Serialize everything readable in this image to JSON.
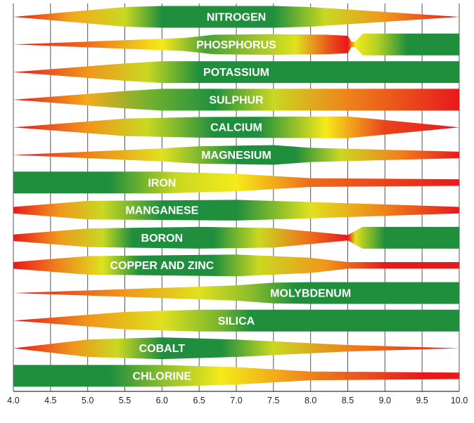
{
  "chart_data": {
    "type": "band",
    "title": "",
    "xlabel": "",
    "ylabel": "",
    "xlim": [
      4.0,
      10.0
    ],
    "x_ticks": [
      "4.0",
      "4.5",
      "5.0",
      "5.5",
      "6.0",
      "6.5",
      "7.0",
      "7.5",
      "8.0",
      "8.5",
      "9.0",
      "9.5",
      "10.0"
    ],
    "grid": "vertical",
    "colors": {
      "red": "#e8191c",
      "yellow": "#f5ea1a",
      "green": "#1f8f3d"
    },
    "series": [
      {
        "name": "NITROGEN",
        "label_x": 7.0,
        "thickness": [
          [
            4.0,
            0
          ],
          [
            5.5,
            0.9
          ],
          [
            6.0,
            1
          ],
          [
            7.5,
            1
          ],
          [
            8.0,
            0.9
          ],
          [
            10.0,
            0
          ]
        ],
        "color": [
          [
            4.0,
            0
          ],
          [
            4.8,
            0.35
          ],
          [
            5.5,
            0.6
          ],
          [
            6.0,
            1
          ],
          [
            7.5,
            1
          ],
          [
            8.2,
            0.6
          ],
          [
            9.0,
            0.3
          ],
          [
            10.0,
            0
          ]
        ]
      },
      {
        "name": "PHOSPHORUS",
        "label_x": 7.0,
        "thickness": [
          [
            4.0,
            0
          ],
          [
            6.3,
            0.6
          ],
          [
            6.7,
            0.9
          ],
          [
            7.5,
            0.95
          ],
          [
            8.2,
            0.9
          ],
          [
            8.5,
            0.8
          ],
          [
            8.55,
            0.25
          ],
          [
            8.6,
            0.25
          ],
          [
            8.7,
            1
          ],
          [
            10.0,
            1
          ]
        ],
        "color": [
          [
            4.0,
            0
          ],
          [
            5.0,
            0.2
          ],
          [
            6.0,
            0.5
          ],
          [
            6.6,
            0.9
          ],
          [
            7.8,
            0.55
          ],
          [
            8.3,
            0.1
          ],
          [
            8.5,
            0
          ],
          [
            8.6,
            0.5
          ],
          [
            8.9,
            0.65
          ],
          [
            9.3,
            1
          ],
          [
            10.0,
            1
          ]
        ]
      },
      {
        "name": "POTASSIUM",
        "label_x": 7.0,
        "thickness": [
          [
            4.0,
            0
          ],
          [
            5.5,
            0.8
          ],
          [
            6.0,
            1
          ],
          [
            10.0,
            1
          ]
        ],
        "color": [
          [
            4.0,
            0
          ],
          [
            5.0,
            0.3
          ],
          [
            5.8,
            0.6
          ],
          [
            6.5,
            1
          ],
          [
            10.0,
            1
          ]
        ]
      },
      {
        "name": "SULPHUR",
        "label_x": 7.0,
        "thickness": [
          [
            4.0,
            0
          ],
          [
            5.5,
            0.8
          ],
          [
            6.0,
            1
          ],
          [
            10.0,
            1
          ]
        ],
        "color": [
          [
            4.0,
            0
          ],
          [
            5.0,
            0.35
          ],
          [
            5.8,
            0.8
          ],
          [
            6.7,
            1
          ],
          [
            7.5,
            0.6
          ],
          [
            8.5,
            0.25
          ],
          [
            10.0,
            0
          ]
        ]
      },
      {
        "name": "CALCIUM",
        "label_x": 7.0,
        "thickness": [
          [
            4.0,
            0
          ],
          [
            5.5,
            0.8
          ],
          [
            6.5,
            0.95
          ],
          [
            8.5,
            1
          ],
          [
            10.0,
            0
          ]
        ],
        "color": [
          [
            4.0,
            0
          ],
          [
            5.0,
            0.3
          ],
          [
            5.8,
            0.6
          ],
          [
            6.7,
            1
          ],
          [
            7.3,
            1
          ],
          [
            8.2,
            0.5
          ],
          [
            9.0,
            0.1
          ],
          [
            10.0,
            0
          ]
        ]
      },
      {
        "name": "MAGNESIUM",
        "label_x": 7.0,
        "thickness": [
          [
            4.0,
            0
          ],
          [
            6.0,
            0.6
          ],
          [
            6.5,
            0.8
          ],
          [
            7.5,
            0.9
          ],
          [
            8.0,
            0.65
          ],
          [
            10.0,
            0.3
          ]
        ],
        "color": [
          [
            4.0,
            0
          ],
          [
            5.0,
            0.25
          ],
          [
            6.0,
            0.55
          ],
          [
            7.0,
            1
          ],
          [
            7.8,
            1
          ],
          [
            8.4,
            0.6
          ],
          [
            9.2,
            0.25
          ],
          [
            10.0,
            0
          ]
        ]
      },
      {
        "name": "IRON",
        "label_x": 6.0,
        "thickness": [
          [
            4.0,
            1
          ],
          [
            6.0,
            1
          ],
          [
            7.0,
            0.8
          ],
          [
            8.0,
            0.4
          ],
          [
            10.0,
            0.3
          ]
        ],
        "color": [
          [
            4.0,
            1
          ],
          [
            5.3,
            1
          ],
          [
            6.2,
            0.6
          ],
          [
            7.0,
            0.5
          ],
          [
            8.0,
            0.2
          ],
          [
            10.0,
            0
          ]
        ]
      },
      {
        "name": "MANGANESE",
        "label_x": 6.0,
        "thickness": [
          [
            4.0,
            0.3
          ],
          [
            5.0,
            0.85
          ],
          [
            7.0,
            0.95
          ],
          [
            8.0,
            0.75
          ],
          [
            10.0,
            0.3
          ]
        ],
        "color": [
          [
            4.0,
            0
          ],
          [
            4.6,
            0.3
          ],
          [
            5.2,
            0.6
          ],
          [
            6.0,
            1
          ],
          [
            7.0,
            1
          ],
          [
            8.0,
            0.55
          ],
          [
            9.0,
            0.25
          ],
          [
            10.0,
            0
          ]
        ]
      },
      {
        "name": "BORON",
        "label_x": 6.0,
        "thickness": [
          [
            4.0,
            0.3
          ],
          [
            5.0,
            0.85
          ],
          [
            6.5,
            1
          ],
          [
            7.5,
            0.9
          ],
          [
            8.5,
            0.25
          ],
          [
            8.7,
            1
          ],
          [
            10.0,
            1
          ]
        ],
        "color": [
          [
            4.0,
            0
          ],
          [
            4.6,
            0.3
          ],
          [
            5.2,
            0.6
          ],
          [
            5.6,
            1
          ],
          [
            6.7,
            1
          ],
          [
            7.3,
            0.6
          ],
          [
            8.0,
            0.2
          ],
          [
            8.5,
            0
          ],
          [
            8.6,
            0.55
          ],
          [
            9.0,
            1
          ],
          [
            10.0,
            1
          ]
        ]
      },
      {
        "name": "COPPER AND ZINC",
        "label_x": 6.0,
        "thickness": [
          [
            4.0,
            0.3
          ],
          [
            5.0,
            0.85
          ],
          [
            7.0,
            1
          ],
          [
            8.0,
            0.7
          ],
          [
            8.5,
            0.3
          ],
          [
            10.0,
            0.3
          ]
        ],
        "color": [
          [
            4.0,
            0
          ],
          [
            4.6,
            0.25
          ],
          [
            5.2,
            0.55
          ],
          [
            5.7,
            1
          ],
          [
            6.7,
            1
          ],
          [
            7.3,
            0.6
          ],
          [
            8.2,
            0.3
          ],
          [
            9.0,
            0
          ],
          [
            10.0,
            0
          ]
        ]
      },
      {
        "name": "MOLYBDENUM",
        "label_x": 8.0,
        "thickness": [
          [
            4.0,
            0
          ],
          [
            7.0,
            0.7
          ],
          [
            7.5,
            0.95
          ],
          [
            8.0,
            1
          ],
          [
            10.0,
            1
          ]
        ],
        "color": [
          [
            4.0,
            0
          ],
          [
            5.5,
            0.3
          ],
          [
            6.5,
            0.55
          ],
          [
            7.2,
            0.75
          ],
          [
            7.8,
            1
          ],
          [
            10.0,
            1
          ]
        ]
      },
      {
        "name": "SILICA",
        "label_x": 7.0,
        "thickness": [
          [
            4.0,
            0
          ],
          [
            5.5,
            0.8
          ],
          [
            6.5,
            1
          ],
          [
            10.0,
            1
          ]
        ],
        "color": [
          [
            4.0,
            0
          ],
          [
            5.0,
            0.3
          ],
          [
            6.0,
            0.55
          ],
          [
            6.8,
            0.8
          ],
          [
            7.2,
            1
          ],
          [
            10.0,
            1
          ]
        ]
      },
      {
        "name": "COBALT",
        "label_x": 6.0,
        "thickness": [
          [
            4.0,
            0
          ],
          [
            5.0,
            0.8
          ],
          [
            6.0,
            1
          ],
          [
            7.0,
            0.8
          ],
          [
            8.5,
            0.3
          ],
          [
            10.0,
            0
          ]
        ],
        "color": [
          [
            4.0,
            0
          ],
          [
            4.8,
            0.3
          ],
          [
            5.4,
            0.6
          ],
          [
            6.0,
            1
          ],
          [
            6.8,
            1
          ],
          [
            7.5,
            0.6
          ],
          [
            8.5,
            0.25
          ],
          [
            10.0,
            0
          ]
        ]
      },
      {
        "name": "CHLORINE",
        "label_x": 6.0,
        "thickness": [
          [
            4.0,
            1
          ],
          [
            6.0,
            1
          ],
          [
            7.0,
            0.8
          ],
          [
            8.0,
            0.4
          ],
          [
            10.0,
            0.3
          ]
        ],
        "color": [
          [
            4.0,
            1
          ],
          [
            5.3,
            1
          ],
          [
            6.0,
            0.75
          ],
          [
            6.8,
            0.5
          ],
          [
            8.0,
            0.25
          ],
          [
            9.5,
            0
          ],
          [
            10.0,
            0
          ]
        ]
      }
    ]
  }
}
